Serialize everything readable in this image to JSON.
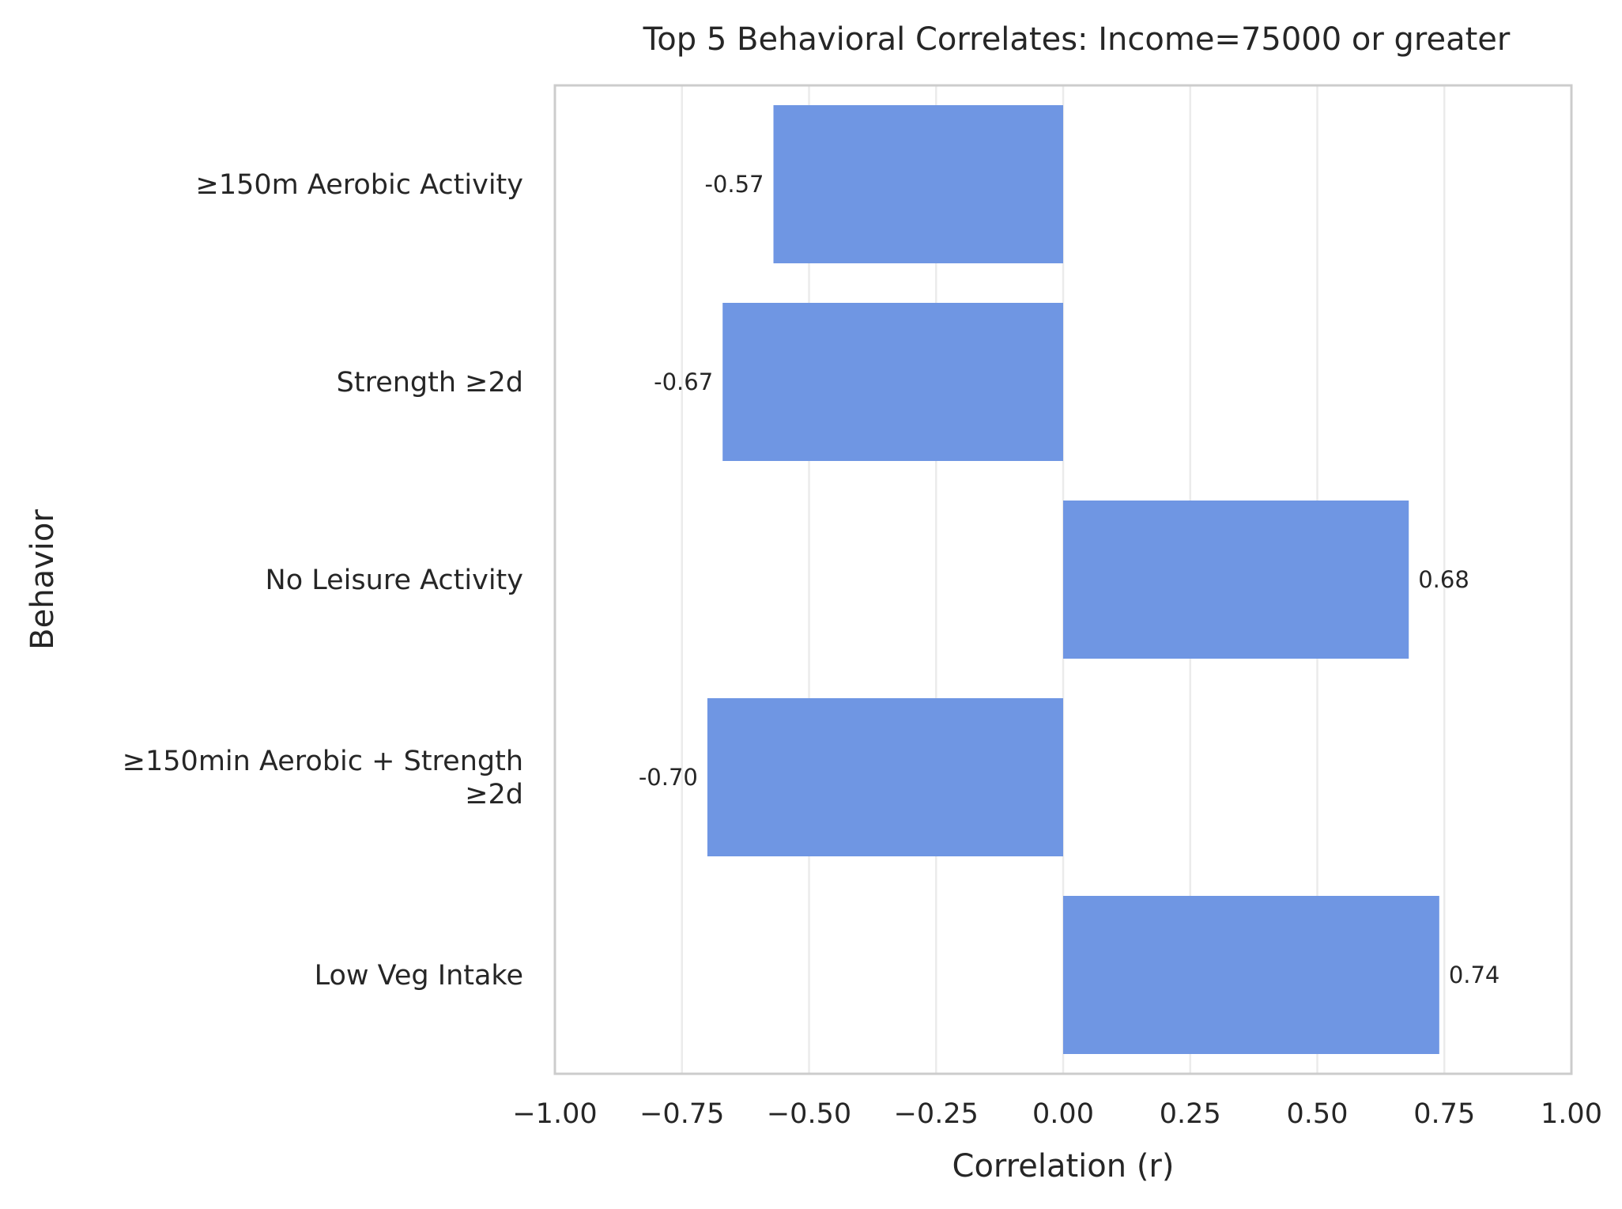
{
  "chart_data": {
    "type": "bar",
    "orientation": "horizontal",
    "title": "Top 5 Behavioral Correlates: Income=75000 or greater",
    "xlabel": "Correlation (r)",
    "ylabel": "Behavior",
    "xlim": [
      -1.0,
      1.0
    ],
    "x_ticks": [
      "−1.00",
      "−0.75",
      "−0.50",
      "−0.25",
      "0.00",
      "0.25",
      "0.50",
      "0.75",
      "1.00"
    ],
    "x_tick_values": [
      -1.0,
      -0.75,
      -0.5,
      -0.25,
      0.0,
      0.25,
      0.5,
      0.75,
      1.0
    ],
    "grid": "vertical",
    "bar_color": "#6f96e3",
    "categories": [
      [
        "≥150m Aerobic Activity"
      ],
      [
        "Strength ≥2d"
      ],
      [
        "No Leisure Activity"
      ],
      [
        "≥150min Aerobic + Strength",
        "≥2d"
      ],
      [
        "Low Veg Intake"
      ]
    ],
    "values": [
      -0.57,
      -0.67,
      0.68,
      -0.7,
      0.74
    ],
    "value_labels": [
      "-0.57",
      "-0.67",
      "0.68",
      "-0.70",
      "0.74"
    ]
  }
}
